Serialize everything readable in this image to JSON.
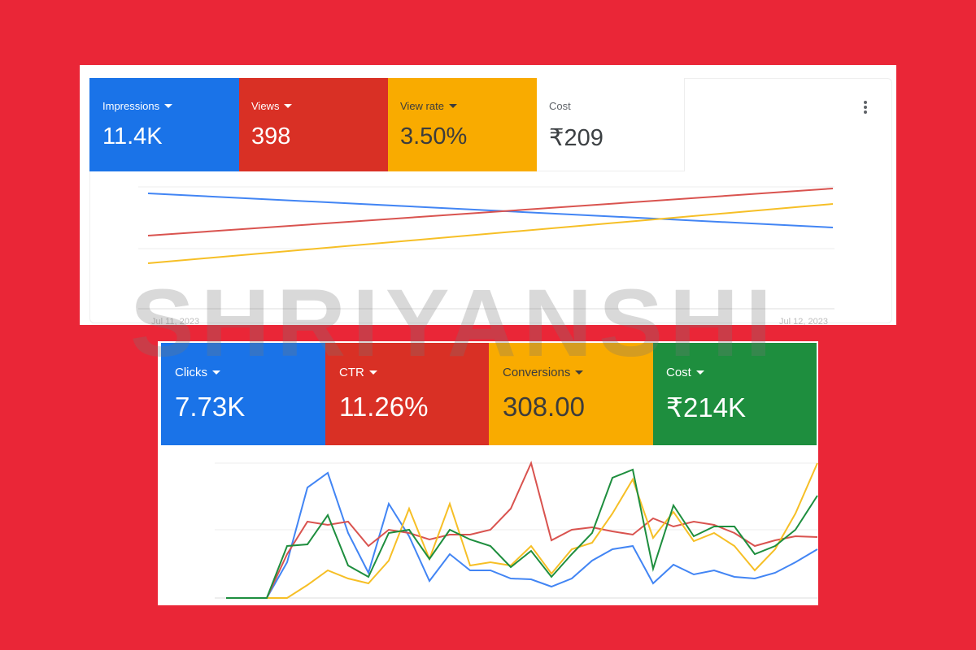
{
  "watermark": "SHRIYANSHI",
  "panels": [
    {
      "metrics": [
        {
          "label": "Impressions",
          "value": "11.4K"
        },
        {
          "label": "Views",
          "value": "398"
        },
        {
          "label": "View rate",
          "value": "3.50%"
        },
        {
          "label": "Cost",
          "value": "₹209"
        }
      ],
      "dates": [
        "Jul 11, 2023",
        "Jul 12, 2023"
      ]
    },
    {
      "metrics": [
        {
          "label": "Clicks",
          "value": "7.73K"
        },
        {
          "label": "CTR",
          "value": "11.26%"
        },
        {
          "label": "Conversions",
          "value": "308.00"
        },
        {
          "label": "Cost",
          "value": "₹214K"
        }
      ]
    }
  ]
}
